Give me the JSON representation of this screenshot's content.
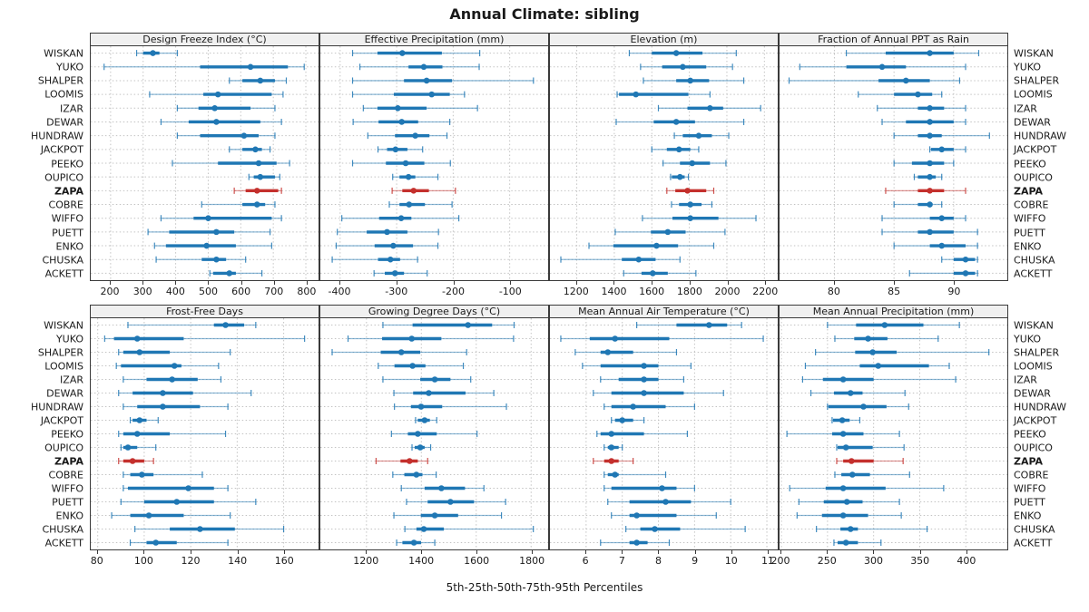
{
  "title": "Annual Climate: sibling",
  "footer": "5th-25th-50th-75th-95th Percentiles",
  "sites": [
    "WISKAN",
    "YUKO",
    "SHALPER",
    "LOOMIS",
    "IZAR",
    "DEWAR",
    "HUNDRAW",
    "JACKPOT",
    "PEEKO",
    "OUPICO",
    "ZAPA",
    "COBRE",
    "WIFFO",
    "PUETT",
    "ENKO",
    "CHUSKA",
    "ACKETT"
  ],
  "highlight_site": "ZAPA",
  "colors": {
    "normal": "#1f77b4",
    "highlight": "#c4302d",
    "grid": "#bdbdbd",
    "border": "#3a3a3a",
    "strip_bg": "#f0f0f0"
  },
  "chart_data": [
    {
      "type": "dotplot-percentiles",
      "title": "Design Freeze Index (°C)",
      "xlim": [
        139,
        839
      ],
      "ticks": [
        200,
        300,
        400,
        500,
        600,
        700,
        800
      ],
      "percentiles": [
        5,
        25,
        50,
        75,
        95
      ],
      "values": [
        [
          280,
          300,
          330,
          350,
          405
        ],
        [
          180,
          475,
          630,
          745,
          795
        ],
        [
          565,
          605,
          660,
          705,
          740
        ],
        [
          320,
          485,
          530,
          695,
          730
        ],
        [
          405,
          470,
          520,
          630,
          705
        ],
        [
          355,
          440,
          525,
          660,
          725
        ],
        [
          405,
          475,
          610,
          655,
          705
        ],
        [
          565,
          605,
          645,
          665,
          690
        ],
        [
          390,
          530,
          655,
          710,
          750
        ],
        [
          625,
          640,
          660,
          705,
          720
        ],
        [
          580,
          615,
          650,
          715,
          725
        ],
        [
          480,
          605,
          650,
          675,
          705
        ],
        [
          355,
          455,
          500,
          695,
          725
        ],
        [
          315,
          380,
          525,
          580,
          690
        ],
        [
          335,
          370,
          495,
          585,
          695
        ],
        [
          340,
          480,
          525,
          555,
          615
        ],
        [
          505,
          515,
          565,
          585,
          665
        ]
      ]
    },
    {
      "type": "dotplot-percentiles",
      "title": "Effective Precipitation (mm)",
      "xlim": [
        -435,
        -32
      ],
      "ticks": [
        -400,
        -300,
        -200,
        -100
      ],
      "percentiles": [
        5,
        25,
        50,
        75,
        95
      ],
      "values": [
        [
          -378,
          -334,
          -290,
          -220,
          -153
        ],
        [
          -365,
          -279,
          -252,
          -219,
          -154
        ],
        [
          -378,
          -287,
          -247,
          -202,
          -58
        ],
        [
          -378,
          -305,
          -238,
          -206,
          -180
        ],
        [
          -359,
          -334,
          -298,
          -247,
          -157
        ],
        [
          -377,
          -332,
          -291,
          -262,
          -206
        ],
        [
          -351,
          -303,
          -267,
          -242,
          -211
        ],
        [
          -333,
          -317,
          -302,
          -281,
          -254
        ],
        [
          -378,
          -319,
          -284,
          -251,
          -205
        ],
        [
          -307,
          -295,
          -279,
          -267,
          -227
        ],
        [
          -308,
          -290,
          -270,
          -243,
          -196
        ],
        [
          -313,
          -295,
          -278,
          -250,
          -202
        ],
        [
          -397,
          -331,
          -292,
          -274,
          -190
        ],
        [
          -405,
          -353,
          -317,
          -281,
          -226
        ],
        [
          -407,
          -339,
          -306,
          -271,
          -227
        ],
        [
          -414,
          -333,
          -311,
          -294,
          -263
        ],
        [
          -340,
          -321,
          -303,
          -287,
          -246
        ]
      ]
    },
    {
      "type": "dotplot-percentiles",
      "title": "Elevation (m)",
      "xlim": [
        1057,
        2271
      ],
      "ticks": [
        1200,
        1400,
        1600,
        1800,
        2000,
        2200
      ],
      "percentiles": [
        5,
        25,
        50,
        75,
        95
      ],
      "values": [
        [
          1480,
          1600,
          1730,
          1870,
          2050
        ],
        [
          1540,
          1655,
          1765,
          1890,
          2030
        ],
        [
          1555,
          1730,
          1805,
          1905,
          2090
        ],
        [
          1415,
          1425,
          1515,
          1795,
          1910
        ],
        [
          1635,
          1790,
          1910,
          1980,
          2180
        ],
        [
          1410,
          1610,
          1730,
          1830,
          2090
        ],
        [
          1720,
          1765,
          1850,
          1920,
          2010
        ],
        [
          1600,
          1680,
          1745,
          1805,
          1850
        ],
        [
          1660,
          1750,
          1815,
          1910,
          1995
        ],
        [
          1700,
          1707,
          1750,
          1775,
          1795
        ],
        [
          1680,
          1725,
          1790,
          1890,
          1930
        ],
        [
          1705,
          1745,
          1805,
          1865,
          1920
        ],
        [
          1550,
          1710,
          1805,
          1955,
          2155
        ],
        [
          1405,
          1595,
          1685,
          1780,
          1990
        ],
        [
          1265,
          1395,
          1625,
          1740,
          1930
        ],
        [
          1115,
          1440,
          1530,
          1620,
          1750
        ],
        [
          1450,
          1545,
          1605,
          1685,
          1835
        ]
      ]
    },
    {
      "type": "dotplot-percentiles",
      "title": "Fraction of Annual PPT as Rain",
      "xlim": [
        75.4,
        94.5
      ],
      "ticks": [
        80,
        85,
        90
      ],
      "percentiles": [
        5,
        25,
        50,
        75,
        95
      ],
      "values": [
        [
          81,
          84.3,
          88,
          90,
          92.1
        ],
        [
          77.1,
          81,
          84,
          86,
          91
        ],
        [
          76.2,
          83.7,
          86,
          88,
          90.5
        ],
        [
          82,
          85,
          87,
          88.2,
          89
        ],
        [
          83.6,
          87,
          88,
          89.2,
          91
        ],
        [
          84,
          86,
          88,
          90,
          91
        ],
        [
          85,
          87,
          88,
          89,
          93
        ],
        [
          88,
          88.1,
          89,
          90,
          91
        ],
        [
          85,
          86.5,
          88,
          89.2,
          90
        ],
        [
          86.7,
          87,
          88,
          88.5,
          89
        ],
        [
          84.3,
          87,
          88,
          89.2,
          91
        ],
        [
          85,
          87,
          88,
          88.2,
          89
        ],
        [
          84,
          88,
          89,
          90,
          91
        ],
        [
          84,
          87,
          88,
          90,
          92
        ],
        [
          85,
          88,
          89,
          91,
          92
        ],
        [
          89,
          90,
          91,
          91.8,
          92
        ],
        [
          86.3,
          90,
          91,
          91.8,
          92
        ]
      ]
    },
    {
      "type": "dotplot-percentiles",
      "title": "Frost-Free Days",
      "xlim": [
        77,
        175
      ],
      "ticks": [
        80,
        100,
        120,
        140,
        160
      ],
      "percentiles": [
        5,
        25,
        50,
        75,
        95
      ],
      "values": [
        [
          93,
          130,
          135,
          143,
          148
        ],
        [
          83,
          87,
          97,
          117,
          169
        ],
        [
          89,
          91,
          98,
          111,
          137
        ],
        [
          88,
          90,
          113,
          116,
          132
        ],
        [
          91,
          101,
          112,
          123,
          133
        ],
        [
          89,
          95,
          108,
          121,
          146
        ],
        [
          91,
          97,
          108,
          124,
          136
        ],
        [
          94,
          95,
          98,
          101,
          106
        ],
        [
          89,
          91,
          97,
          111,
          135
        ],
        [
          90,
          91,
          93,
          97,
          105
        ],
        [
          89,
          91,
          95,
          100,
          104
        ],
        [
          91,
          94,
          99,
          104,
          125
        ],
        [
          91,
          93,
          119,
          130,
          136
        ],
        [
          90,
          100,
          114,
          130,
          148
        ],
        [
          86,
          94,
          102,
          117,
          137
        ],
        [
          96,
          111,
          124,
          139,
          160
        ],
        [
          94,
          101,
          105,
          114,
          136
        ]
      ]
    },
    {
      "type": "dotplot-percentiles",
      "title": "Growing Degree Days (°C)",
      "xlim": [
        1032,
        1862
      ],
      "ticks": [
        1200,
        1400,
        1600,
        1800
      ],
      "percentiles": [
        5,
        25,
        50,
        75,
        95
      ],
      "values": [
        [
          1260,
          1368,
          1570,
          1658,
          1738
        ],
        [
          1133,
          1257,
          1365,
          1473,
          1736
        ],
        [
          1075,
          1252,
          1327,
          1396,
          1565
        ],
        [
          1243,
          1302,
          1368,
          1415,
          1553
        ],
        [
          1260,
          1396,
          1449,
          1506,
          1580
        ],
        [
          1300,
          1370,
          1427,
          1561,
          1664
        ],
        [
          1302,
          1362,
          1399,
          1476,
          1710
        ],
        [
          1379,
          1387,
          1412,
          1431,
          1456
        ],
        [
          1291,
          1351,
          1387,
          1456,
          1603
        ],
        [
          1366,
          1376,
          1396,
          1412,
          1434
        ],
        [
          1235,
          1324,
          1357,
          1387,
          1423
        ],
        [
          1296,
          1338,
          1382,
          1404,
          1454
        ],
        [
          1327,
          1412,
          1473,
          1559,
          1628
        ],
        [
          1346,
          1423,
          1506,
          1592,
          1707
        ],
        [
          1300,
          1398,
          1449,
          1534,
          1692
        ],
        [
          1340,
          1382,
          1409,
          1482,
          1808
        ],
        [
          1310,
          1331,
          1373,
          1399,
          1449
        ]
      ]
    },
    {
      "type": "dotplot-percentiles",
      "title": "Mean Annual Air Temperature (°C)",
      "xlim": [
        5.0,
        11.3
      ],
      "ticks": [
        6,
        7,
        8,
        9,
        10,
        11
      ],
      "percentiles": [
        5,
        25,
        50,
        75,
        95
      ],
      "values": [
        [
          7.4,
          8.5,
          9.4,
          9.9,
          10.3
        ],
        [
          5.3,
          6.1,
          6.8,
          8.3,
          10.9
        ],
        [
          5.7,
          6.4,
          6.6,
          7.3,
          8.5
        ],
        [
          5.9,
          6.4,
          7.6,
          8.0,
          8.9
        ],
        [
          6.4,
          6.9,
          7.6,
          8.0,
          8.7
        ],
        [
          6.2,
          6.7,
          7.6,
          8.7,
          9.8
        ],
        [
          6.5,
          6.7,
          7.3,
          8.2,
          9.0
        ],
        [
          6.7,
          6.8,
          7.0,
          7.3,
          7.6
        ],
        [
          6.3,
          6.4,
          6.7,
          7.6,
          8.8
        ],
        [
          6.5,
          6.6,
          6.7,
          6.9,
          7.0
        ],
        [
          6.2,
          6.5,
          6.7,
          6.9,
          7.3
        ],
        [
          6.5,
          6.6,
          6.8,
          6.9,
          8.2
        ],
        [
          6.5,
          6.7,
          8.1,
          8.5,
          9.0
        ],
        [
          6.6,
          7.2,
          8.2,
          8.9,
          10.0
        ],
        [
          6.7,
          7.2,
          7.4,
          8.5,
          9.6
        ],
        [
          7.1,
          7.5,
          7.9,
          8.6,
          10.4
        ],
        [
          6.4,
          7.2,
          7.4,
          7.7,
          8.3
        ]
      ]
    },
    {
      "type": "dotplot-percentiles",
      "title": "Mean Annual Precipitation (mm)",
      "xlim": [
        198,
        445
      ],
      "ticks": [
        200,
        250,
        300,
        350,
        400
      ],
      "percentiles": [
        5,
        25,
        50,
        75,
        95
      ],
      "values": [
        [
          250,
          281,
          312,
          354,
          393
        ],
        [
          258,
          279,
          294,
          315,
          370
        ],
        [
          237,
          280,
          299,
          325,
          425
        ],
        [
          226,
          285,
          305,
          360,
          382
        ],
        [
          223,
          245,
          267,
          300,
          389
        ],
        [
          232,
          257,
          275,
          288,
          334
        ],
        [
          250,
          251,
          289,
          314,
          338
        ],
        [
          255,
          256,
          266,
          274,
          285
        ],
        [
          206,
          255,
          267,
          289,
          328
        ],
        [
          260,
          261,
          270,
          299,
          333
        ],
        [
          260,
          267,
          276,
          300,
          332
        ],
        [
          258,
          265,
          277,
          296,
          339
        ],
        [
          209,
          248,
          267,
          313,
          376
        ],
        [
          219,
          246,
          271,
          288,
          328
        ],
        [
          217,
          244,
          267,
          294,
          330
        ],
        [
          238,
          264,
          275,
          283,
          358
        ],
        [
          257,
          261,
          270,
          283,
          308
        ]
      ]
    }
  ]
}
